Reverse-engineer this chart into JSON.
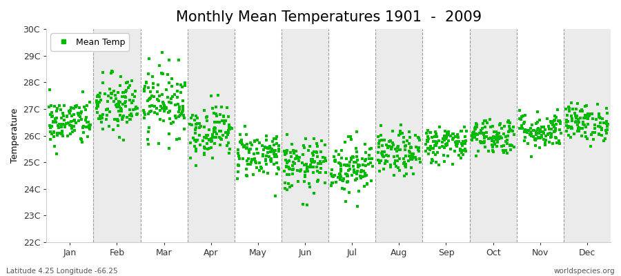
{
  "title": "Monthly Mean Temperatures 1901  -  2009",
  "ylabel": "Temperature",
  "ylim": [
    22,
    30
  ],
  "ytick_labels": [
    "22C",
    "23C",
    "24C",
    "25C",
    "26C",
    "27C",
    "28C",
    "29C",
    "30C"
  ],
  "ytick_values": [
    22,
    23,
    24,
    25,
    26,
    27,
    28,
    29,
    30
  ],
  "months": [
    "Jan",
    "Feb",
    "Mar",
    "Apr",
    "May",
    "Jun",
    "Jul",
    "Aug",
    "Sep",
    "Oct",
    "Nov",
    "Dec"
  ],
  "month_means": [
    26.5,
    27.1,
    27.3,
    26.2,
    25.3,
    24.85,
    24.85,
    25.3,
    25.7,
    26.0,
    26.2,
    26.5
  ],
  "month_stds": [
    0.45,
    0.6,
    0.65,
    0.5,
    0.45,
    0.5,
    0.52,
    0.42,
    0.35,
    0.35,
    0.35,
    0.35
  ],
  "n_years": 109,
  "marker_color": "#00bb00",
  "marker": "s",
  "marker_size": 2.5,
  "background_color": "#ffffff",
  "band_color": "#ebebeb",
  "legend_label": "Mean Temp",
  "bottom_left": "Latitude 4.25 Longitude -66.25",
  "bottom_right": "worldspecies.org",
  "title_fontsize": 15,
  "label_fontsize": 9,
  "tick_fontsize": 9,
  "seed": 42,
  "band_start_white": true
}
